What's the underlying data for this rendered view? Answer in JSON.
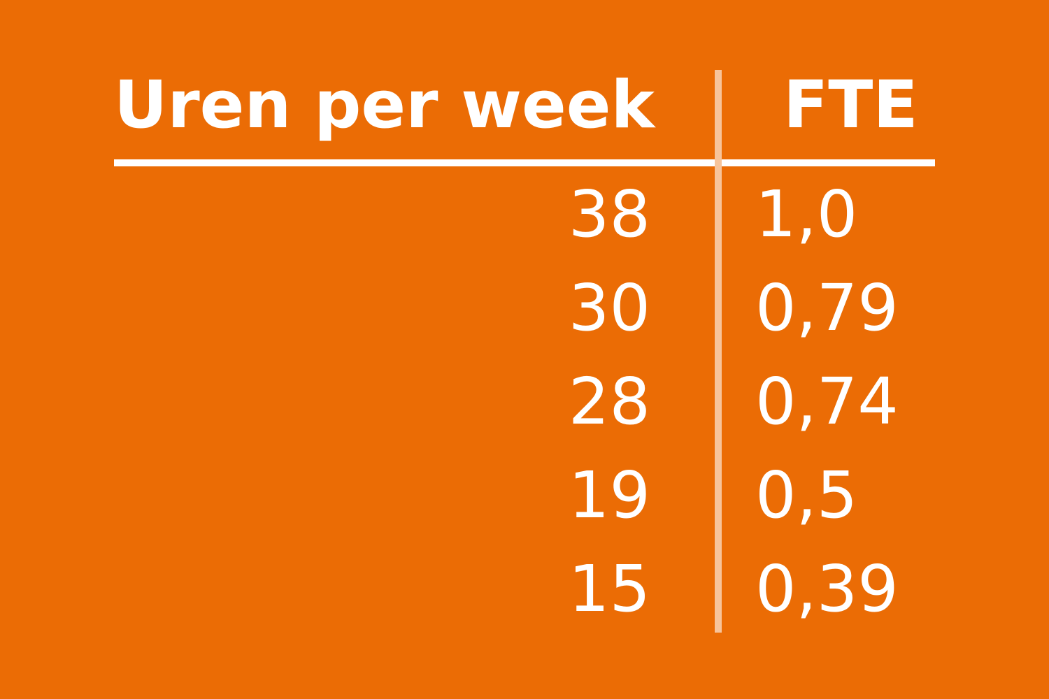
{
  "colors": {
    "background": "#EB6C05",
    "text": "#FFFFFF",
    "header_rule": "#FFFFFF",
    "column_divider": "#F7C49B"
  },
  "table": {
    "columns": [
      {
        "label": "Uren per week"
      },
      {
        "label": "FTE"
      }
    ],
    "rows": [
      {
        "hours": "38",
        "fte": "1,0"
      },
      {
        "hours": "30",
        "fte": "0,79"
      },
      {
        "hours": "28",
        "fte": "0,74"
      },
      {
        "hours": "19",
        "fte": "0,5"
      },
      {
        "hours": "15",
        "fte": "0,39"
      }
    ]
  },
  "chart_data": {
    "type": "table",
    "title": "",
    "columns": [
      "Uren per week",
      "FTE"
    ],
    "rows": [
      [
        38,
        "1,0"
      ],
      [
        30,
        "0,79"
      ],
      [
        28,
        "0,74"
      ],
      [
        19,
        "0,5"
      ],
      [
        15,
        "0,39"
      ]
    ],
    "notes_layout": "two-column conversion table, white text on orange, header divider rules"
  }
}
